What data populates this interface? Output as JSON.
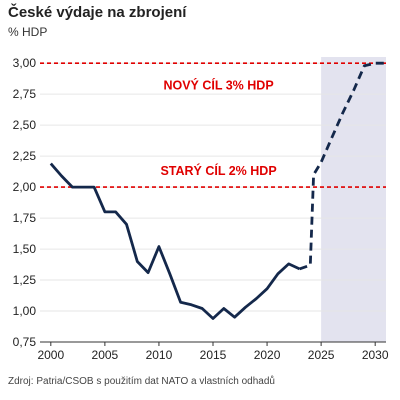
{
  "header": {
    "title": "České výdaje na zbrojení",
    "subtitle": "% HDP"
  },
  "footer": {
    "source": "Zdroj: Patria/CSOB s použitím dat NATO a vlastních odhadů"
  },
  "colors": {
    "line": "#14284b",
    "threshold": "#e00000",
    "forecast_band": "#e3e3ef",
    "grid": "#e6e6e6",
    "axis": "#333333"
  },
  "chart_data": {
    "type": "line",
    "title": "České výdaje na zbrojení",
    "ylabel": "% HDP",
    "xlabel": "",
    "xlim": [
      1999,
      2031
    ],
    "ylim": [
      0.75,
      3.05
    ],
    "xticks": [
      2000,
      2005,
      2010,
      2015,
      2020,
      2025,
      2030
    ],
    "xtick_labels": [
      "2000",
      "2005",
      "2010",
      "2015",
      "2020",
      "2025",
      "2030"
    ],
    "yticks": [
      0.75,
      1.0,
      1.25,
      1.5,
      1.75,
      2.0,
      2.25,
      2.5,
      2.75,
      3.0
    ],
    "ytick_labels": [
      "0,75",
      "1,00",
      "1,25",
      "1,50",
      "1,75",
      "2,00",
      "2,25",
      "2,50",
      "2,75",
      "3,00"
    ],
    "grid": "horizontal",
    "forecast_region": [
      2025,
      2031
    ],
    "series": [
      {
        "style": "solid",
        "x": [
          2000,
          2001,
          2002,
          2003,
          2004,
          2005,
          2006,
          2007,
          2008,
          2009,
          2010,
          2011,
          2012,
          2013,
          2014,
          2015,
          2016,
          2017,
          2018,
          2019,
          2020,
          2021,
          2022,
          2023
        ],
        "y": [
          2.19,
          2.09,
          2.0,
          2.0,
          2.0,
          1.8,
          1.8,
          1.7,
          1.4,
          1.31,
          1.52,
          1.3,
          1.07,
          1.05,
          1.02,
          0.94,
          1.02,
          0.95,
          1.03,
          1.1,
          1.18,
          1.3,
          1.38,
          1.34
        ]
      },
      {
        "style": "dashed",
        "x": [
          2023,
          2024,
          2024.3,
          2025,
          2026,
          2027,
          2028,
          2029,
          2030,
          2031
        ],
        "y": [
          1.34,
          1.37,
          2.1,
          2.2,
          2.4,
          2.6,
          2.78,
          2.98,
          3.0,
          3.0
        ]
      }
    ],
    "thresholds": [
      {
        "value": 3.0,
        "label": "NOVÝ CÍL 3% HDP",
        "label_y": 2.82
      },
      {
        "value": 2.0,
        "label": "STARÝ CÍL 2% HDP",
        "label_y": 2.13
      }
    ]
  }
}
